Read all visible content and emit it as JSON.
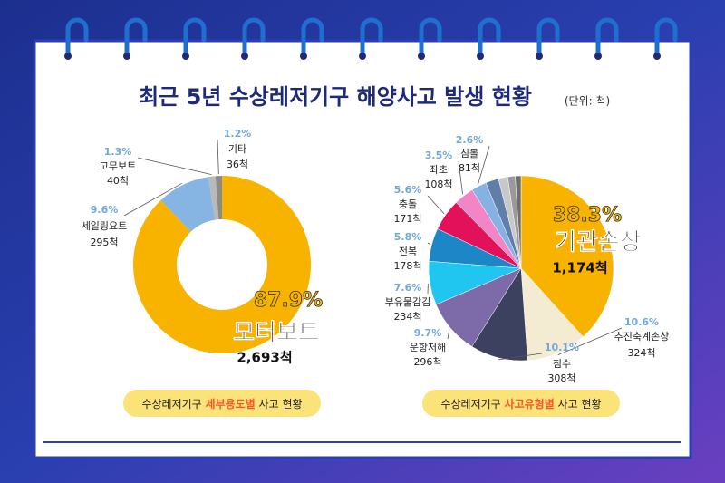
{
  "title": "최근 5년 수상레저기구 해양사고 발생 현황",
  "unit": "(단위: 척)",
  "chart_data": [
    {
      "type": "donut",
      "caption": [
        "수상레저기구 ",
        "세부용도별",
        " 사고 현황"
      ],
      "categories": [
        "모터보트",
        "세일링요트",
        "고무보트",
        "기타"
      ],
      "values": [
        2693,
        295,
        40,
        36
      ],
      "value_labels": [
        "2,693척",
        "295척",
        "40척",
        "36척"
      ],
      "percent_labels": [
        "87.9%",
        "9.6%",
        "1.3%",
        "1.2%"
      ],
      "colors": [
        "#f8b200",
        "#86b4e3",
        "#b9b9b9",
        "#8a8a8a"
      ]
    },
    {
      "type": "pie",
      "caption": [
        "수상레저기구 ",
        "사고유형별",
        " 사고 현황"
      ],
      "categories": [
        "기관손상",
        "추진축계손상",
        "침수",
        "운항저해",
        "부유물감김",
        "전복",
        "충돌",
        "좌초",
        "침몰",
        null,
        null,
        null,
        null
      ],
      "values": [
        1174,
        324,
        308,
        296,
        234,
        178,
        171,
        108,
        81,
        70,
        50,
        40,
        31
      ],
      "value_labels": [
        "1,174척",
        "324척",
        "308척",
        "296척",
        "234척",
        "178척",
        "171척",
        "108척",
        "81척",
        null,
        null,
        null,
        null
      ],
      "percent_labels": [
        "38.3%",
        "10.6%",
        "10.1%",
        "9.7%",
        "7.6%",
        "5.8%",
        "5.6%",
        "3.5%",
        "2.6%",
        null,
        null,
        null,
        null
      ],
      "colors": [
        "#f8b200",
        "#f3ebd2",
        "#3d4160",
        "#7c6aa9",
        "#20c6f0",
        "#1d86c6",
        "#e3105a",
        "#f285c6",
        "#85b2e2",
        "#5f7fa8",
        "#c8c8c8",
        "#9a9a9a",
        "#6e6e6e"
      ]
    }
  ]
}
